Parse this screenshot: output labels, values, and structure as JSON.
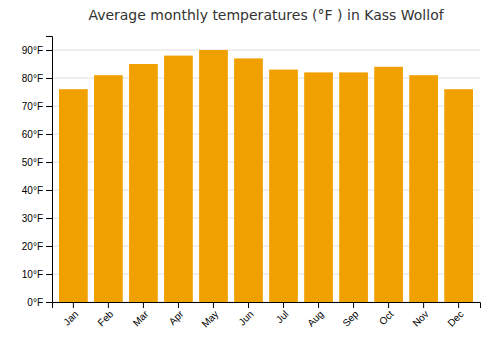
{
  "chart_data": {
    "type": "bar",
    "title": "Average monthly temperatures (°F ) in Kass Wollof",
    "categories": [
      "Jan",
      "Feb",
      "Mar",
      "Apr",
      "May",
      "Jun",
      "Jul",
      "Aug",
      "Sep",
      "Oct",
      "Nov",
      "Dec"
    ],
    "values": [
      76,
      81,
      85,
      88,
      90,
      87,
      83,
      82,
      82,
      84,
      81,
      76
    ],
    "color": "#F0A000",
    "ylim": [
      0,
      95
    ],
    "yticks": [
      {
        "value": 0,
        "label": "0°F"
      },
      {
        "value": 10,
        "label": "10°F"
      },
      {
        "value": 20,
        "label": "20°F"
      },
      {
        "value": 30,
        "label": "30°F"
      },
      {
        "value": 40,
        "label": "40°F"
      },
      {
        "value": 50,
        "label": "50°F"
      },
      {
        "value": 60,
        "label": "60°F"
      },
      {
        "value": 70,
        "label": "70°F"
      },
      {
        "value": 80,
        "label": "80°F"
      },
      {
        "value": 90,
        "label": "90°F"
      }
    ],
    "grid": true
  }
}
